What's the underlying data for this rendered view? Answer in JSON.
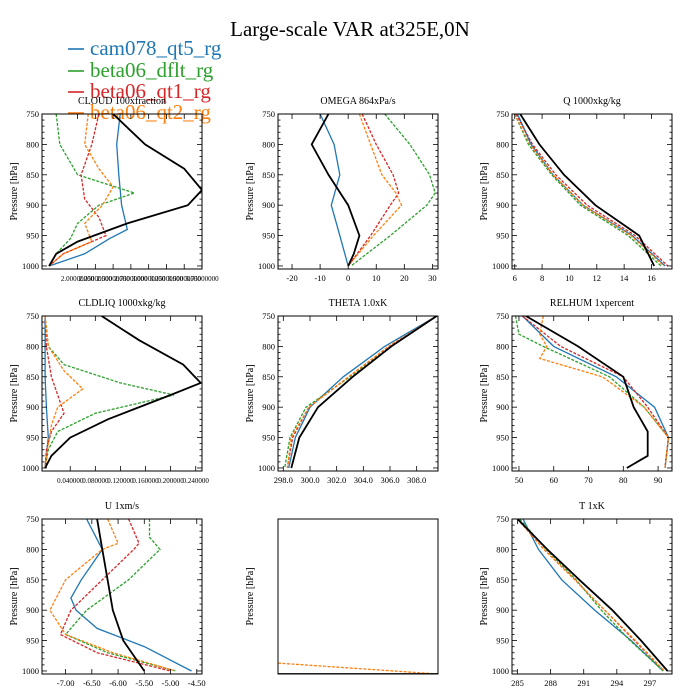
{
  "title": "Large-scale VAR at325E,0N",
  "legend": [
    {
      "name": "cam078_qt5_rg",
      "color": "#1f77b4"
    },
    {
      "name": "beta06_dflt_rg",
      "color": "#2ca02c"
    },
    {
      "name": "beta06_qt1_rg",
      "color": "#d62728"
    },
    {
      "name": "beta06_qt2_rg",
      "color": "#ff7f0e"
    }
  ],
  "ylabel": "Pressure [hPa]",
  "chart_data": [
    {
      "type": "line",
      "title": "CLOUD  100xfraction",
      "xlim": [
        1.5,
        3.75
      ],
      "ylim": [
        1005,
        750
      ],
      "xticks": [
        2.0,
        2.25,
        2.5,
        2.75,
        3.0,
        3.25,
        3.5,
        3.75
      ],
      "xtick_labels": [
        "2.00000000",
        "2.25000000",
        "2.50000000",
        "2.75000000",
        "3.00000000",
        "3.25000000",
        "3.50000000",
        "3.75000000"
      ],
      "yticks": [
        750,
        800,
        850,
        900,
        950,
        1000
      ],
      "series": [
        {
          "color": "#1f77b4",
          "y": [
            750,
            800,
            850,
            900,
            940,
            955,
            980,
            1000
          ],
          "x": [
            2.6,
            2.55,
            2.58,
            2.62,
            2.7,
            2.45,
            2.1,
            1.6
          ]
        },
        {
          "color": "#2ca02c",
          "y": [
            750,
            800,
            850,
            880,
            900,
            930,
            955,
            980,
            1000
          ],
          "x": [
            1.7,
            1.75,
            2.0,
            2.8,
            2.3,
            2.0,
            1.9,
            1.7,
            1.6
          ]
        },
        {
          "color": "#d62728",
          "y": [
            750,
            800,
            850,
            890,
            920,
            950,
            980,
            1000
          ],
          "x": [
            2.3,
            2.2,
            2.05,
            2.1,
            2.3,
            2.4,
            1.8,
            1.6
          ]
        },
        {
          "color": "#ff7f0e",
          "y": [
            750,
            800,
            840,
            870,
            900,
            930,
            960,
            980,
            1000
          ],
          "x": [
            2.15,
            2.1,
            2.3,
            2.5,
            2.35,
            2.1,
            2.2,
            1.8,
            1.6
          ]
        },
        {
          "color": "#000000",
          "y": [
            750,
            800,
            840,
            875,
            900,
            930,
            960,
            980,
            1000
          ],
          "x": [
            2.5,
            2.95,
            3.5,
            3.75,
            3.55,
            2.7,
            2.0,
            1.7,
            1.6
          ]
        }
      ]
    },
    {
      "type": "line",
      "title": "OMEGA  864xPa/s",
      "xlim": [
        -25,
        32
      ],
      "ylim": [
        1005,
        750
      ],
      "xticks": [
        -20,
        -10,
        0,
        10,
        20,
        30
      ],
      "xtick_labels": [
        "-20",
        "-10",
        "0",
        "10",
        "20",
        "30"
      ],
      "yticks": [
        750,
        800,
        850,
        900,
        950,
        1000
      ],
      "series": [
        {
          "color": "#1f77b4",
          "y": [
            750,
            800,
            850,
            900,
            950,
            1000
          ],
          "x": [
            -10,
            -5,
            -3,
            -6,
            -3,
            0
          ]
        },
        {
          "color": "#2ca02c",
          "y": [
            750,
            800,
            850,
            880,
            900,
            950,
            1000
          ],
          "x": [
            13,
            22,
            29,
            31,
            28,
            15,
            1
          ]
        },
        {
          "color": "#d62728",
          "y": [
            750,
            800,
            850,
            880,
            900,
            950,
            1000
          ],
          "x": [
            5,
            10,
            16,
            18,
            15,
            8,
            0
          ]
        },
        {
          "color": "#ff7f0e",
          "y": [
            750,
            800,
            850,
            880,
            900,
            950,
            1000
          ],
          "x": [
            4,
            8,
            12,
            17,
            19,
            9,
            0
          ]
        },
        {
          "color": "#000000",
          "y": [
            750,
            800,
            850,
            900,
            950,
            980,
            1000
          ],
          "x": [
            -7,
            -13,
            -7,
            0,
            4,
            2,
            0
          ]
        }
      ]
    },
    {
      "type": "line",
      "title": "Q  1000xkg/kg",
      "xlim": [
        5.8,
        17.5
      ],
      "ylim": [
        1005,
        750
      ],
      "xticks": [
        6,
        8,
        10,
        12,
        14,
        16
      ],
      "xtick_labels": [
        "6",
        "8",
        "10",
        "12",
        "14",
        "16"
      ],
      "yticks": [
        750,
        800,
        850,
        900,
        950,
        1000
      ],
      "series": [
        {
          "color": "#1f77b4",
          "y": [
            750,
            800,
            850,
            900,
            950,
            1000
          ],
          "x": [
            6.2,
            7.2,
            8.8,
            11.0,
            14.6,
            17.0
          ]
        },
        {
          "color": "#2ca02c",
          "y": [
            750,
            800,
            850,
            900,
            950,
            1000
          ],
          "x": [
            6.0,
            7.0,
            8.7,
            10.8,
            14.3,
            16.7
          ]
        },
        {
          "color": "#d62728",
          "y": [
            750,
            800,
            850,
            900,
            950,
            1000
          ],
          "x": [
            6.1,
            7.3,
            9.0,
            11.3,
            14.8,
            17.2
          ]
        },
        {
          "color": "#ff7f0e",
          "y": [
            750,
            800,
            850,
            900,
            950,
            1000
          ],
          "x": [
            6.0,
            7.1,
            8.8,
            11.0,
            14.5,
            16.9
          ]
        },
        {
          "color": "#000000",
          "y": [
            750,
            800,
            850,
            900,
            950,
            1000
          ],
          "x": [
            6.4,
            7.8,
            9.6,
            11.9,
            15.1,
            16.2
          ]
        }
      ]
    },
    {
      "type": "line",
      "title": "CLDLIQ  1000xkg/kg",
      "xlim": [
        -0.005,
        0.25
      ],
      "ylim": [
        1005,
        750
      ],
      "xticks": [
        0.04,
        0.08,
        0.12,
        0.16,
        0.2,
        0.24
      ],
      "xtick_labels": [
        "0.040000",
        "0.080000",
        "0.120000",
        "0.160000",
        "0.200000",
        "0.240000"
      ],
      "yticks": [
        750,
        800,
        850,
        900,
        950,
        1000
      ],
      "series": [
        {
          "color": "#1f77b4",
          "y": [
            750,
            800,
            850,
            900,
            950,
            1000
          ],
          "x": [
            0.0,
            0.0,
            0.0,
            0.002,
            0.005,
            0.0
          ]
        },
        {
          "color": "#2ca02c",
          "y": [
            750,
            800,
            830,
            860,
            880,
            910,
            940,
            970,
            1000
          ],
          "x": [
            0.0,
            0.005,
            0.03,
            0.12,
            0.205,
            0.08,
            0.02,
            0.005,
            0.0
          ]
        },
        {
          "color": "#d62728",
          "y": [
            750,
            800,
            850,
            880,
            910,
            940,
            970,
            1000
          ],
          "x": [
            0.0,
            0.002,
            0.01,
            0.02,
            0.03,
            0.01,
            0.002,
            0.0
          ]
        },
        {
          "color": "#ff7f0e",
          "y": [
            750,
            800,
            840,
            870,
            900,
            930,
            960,
            1000
          ],
          "x": [
            0.0,
            0.005,
            0.03,
            0.06,
            0.02,
            0.01,
            0.005,
            0.0
          ]
        },
        {
          "color": "#000000",
          "y": [
            750,
            790,
            830,
            860,
            880,
            920,
            950,
            980,
            1000
          ],
          "x": [
            0.09,
            0.15,
            0.22,
            0.248,
            0.2,
            0.1,
            0.04,
            0.01,
            0.0
          ]
        }
      ]
    },
    {
      "type": "line",
      "title": "THETA  1.0xK",
      "xlim": [
        297.6,
        309.6
      ],
      "ylim": [
        1005,
        750
      ],
      "xticks": [
        298.0,
        300.0,
        302.0,
        304.0,
        306.0,
        308.0
      ],
      "xtick_labels": [
        "298.0",
        "300.0",
        "302.0",
        "304.0",
        "306.0",
        "308.0"
      ],
      "yticks": [
        750,
        800,
        850,
        900,
        950,
        1000
      ],
      "series": [
        {
          "color": "#1f77b4",
          "y": [
            750,
            800,
            850,
            900,
            950,
            1000
          ],
          "x": [
            309.5,
            305.6,
            302.5,
            300.0,
            298.9,
            298.4
          ]
        },
        {
          "color": "#2ca02c",
          "y": [
            750,
            800,
            850,
            900,
            950,
            1000
          ],
          "x": [
            309.5,
            306.0,
            303.0,
            299.7,
            298.5,
            298.1
          ]
        },
        {
          "color": "#d62728",
          "y": [
            750,
            800,
            850,
            900,
            950,
            1000
          ],
          "x": [
            309.5,
            305.9,
            302.9,
            299.9,
            298.7,
            298.3
          ]
        },
        {
          "color": "#ff7f0e",
          "y": [
            750,
            800,
            850,
            900,
            950,
            1000
          ],
          "x": [
            309.5,
            305.9,
            302.9,
            299.9,
            298.6,
            298.3
          ]
        },
        {
          "color": "#000000",
          "y": [
            750,
            800,
            850,
            900,
            950,
            1000
          ],
          "x": [
            309.5,
            306.1,
            303.2,
            300.6,
            299.2,
            298.6
          ]
        }
      ]
    },
    {
      "type": "line",
      "title": "RELHUM  1xpercent",
      "xlim": [
        48,
        94
      ],
      "ylim": [
        1005,
        750
      ],
      "xticks": [
        50,
        60,
        70,
        80,
        90
      ],
      "xtick_labels": [
        "50",
        "60",
        "70",
        "80",
        "90"
      ],
      "yticks": [
        750,
        800,
        850,
        900,
        950,
        1000
      ],
      "series": [
        {
          "color": "#1f77b4",
          "y": [
            750,
            800,
            850,
            900,
            950,
            1000
          ],
          "x": [
            51,
            60,
            78,
            89,
            93,
            92
          ]
        },
        {
          "color": "#2ca02c",
          "y": [
            750,
            780,
            800,
            850,
            900,
            950,
            1000
          ],
          "x": [
            49,
            50,
            57,
            76,
            86,
            93,
            92
          ]
        },
        {
          "color": "#d62728",
          "y": [
            750,
            800,
            850,
            900,
            950,
            1000
          ],
          "x": [
            51,
            62,
            80,
            87,
            93,
            92
          ]
        },
        {
          "color": "#ff7f0e",
          "y": [
            750,
            780,
            800,
            820,
            850,
            900,
            950,
            1000
          ],
          "x": [
            57,
            56,
            58,
            56,
            74,
            86,
            93,
            92
          ]
        },
        {
          "color": "#000000",
          "y": [
            750,
            800,
            850,
            900,
            940,
            980,
            1000
          ],
          "x": [
            52,
            67,
            80,
            83,
            87,
            87,
            81
          ]
        }
      ]
    },
    {
      "type": "line",
      "title": "U  1xm/s",
      "xlim": [
        -7.45,
        -4.4
      ],
      "ylim": [
        1005,
        750
      ],
      "xticks": [
        -7.0,
        -6.5,
        -6.0,
        -5.5,
        -5.0,
        -4.5
      ],
      "xtick_labels": [
        "-7.00",
        "-6.50",
        "-6.00",
        "-5.50",
        "-5.00",
        "-4.50"
      ],
      "yticks": [
        750,
        800,
        850,
        900,
        950,
        1000
      ],
      "series": [
        {
          "color": "#1f77b4",
          "y": [
            750,
            800,
            850,
            880,
            900,
            930,
            960,
            1000
          ],
          "x": [
            -6.6,
            -6.3,
            -6.7,
            -6.9,
            -6.8,
            -6.4,
            -5.5,
            -4.6
          ]
        },
        {
          "color": "#2ca02c",
          "y": [
            750,
            780,
            800,
            850,
            900,
            940,
            970,
            1000
          ],
          "x": [
            -5.4,
            -5.4,
            -5.2,
            -5.8,
            -6.6,
            -7.0,
            -6.2,
            -4.9
          ]
        },
        {
          "color": "#d62728",
          "y": [
            750,
            790,
            800,
            850,
            900,
            940,
            970,
            1000
          ],
          "x": [
            -5.8,
            -5.6,
            -5.7,
            -6.3,
            -6.9,
            -7.1,
            -6.4,
            -5.0
          ]
        },
        {
          "color": "#ff7f0e",
          "y": [
            750,
            790,
            800,
            850,
            900,
            940,
            970,
            1000
          ],
          "x": [
            -6.2,
            -6.0,
            -6.3,
            -7.0,
            -7.3,
            -7.0,
            -6.1,
            -4.9
          ]
        },
        {
          "color": "#000000",
          "y": [
            750,
            800,
            850,
            900,
            950,
            1000
          ],
          "x": [
            -6.4,
            -6.3,
            -6.2,
            -6.1,
            -5.9,
            -5.5
          ]
        }
      ]
    },
    {
      "type": "line",
      "title": "",
      "xlim": [
        0,
        1
      ],
      "ylim": [
        0,
        1
      ],
      "xticks": [],
      "xtick_labels": [],
      "yticks": [],
      "ytick_labels": [],
      "series": [
        {
          "color": "#ff7f0e",
          "x": [
            0,
            1
          ],
          "y": [
            0.07,
            0.0
          ]
        },
        {
          "color": "#000000",
          "x": [
            0,
            1
          ],
          "y": [
            0.0,
            0.0
          ]
        }
      ]
    },
    {
      "type": "line",
      "title": "T  1xK",
      "xlim": [
        284.5,
        299.0
      ],
      "ylim": [
        1005,
        750
      ],
      "xticks": [
        285,
        288,
        291,
        294,
        297
      ],
      "xtick_labels": [
        "285",
        "288",
        "291",
        "294",
        "297"
      ],
      "yticks": [
        750,
        800,
        850,
        900,
        950,
        1000
      ],
      "series": [
        {
          "color": "#1f77b4",
          "y": [
            750,
            800,
            850,
            900,
            950,
            1000
          ],
          "x": [
            285.5,
            286.9,
            289.0,
            292.0,
            295.3,
            298.2
          ]
        },
        {
          "color": "#2ca02c",
          "y": [
            750,
            800,
            850,
            900,
            950,
            1000
          ],
          "x": [
            285.2,
            287.6,
            290.3,
            292.6,
            295.2,
            298.2
          ]
        },
        {
          "color": "#d62728",
          "y": [
            750,
            800,
            850,
            900,
            950,
            1000
          ],
          "x": [
            285.0,
            287.4,
            290.2,
            292.9,
            295.6,
            298.3
          ]
        },
        {
          "color": "#ff7f0e",
          "y": [
            750,
            800,
            850,
            900,
            950,
            1000
          ],
          "x": [
            285.0,
            287.4,
            290.2,
            292.9,
            295.7,
            298.3
          ]
        },
        {
          "color": "#000000",
          "y": [
            750,
            800,
            850,
            900,
            950,
            1000
          ],
          "x": [
            285.0,
            287.7,
            290.6,
            293.6,
            296.2,
            298.6
          ]
        }
      ]
    }
  ]
}
